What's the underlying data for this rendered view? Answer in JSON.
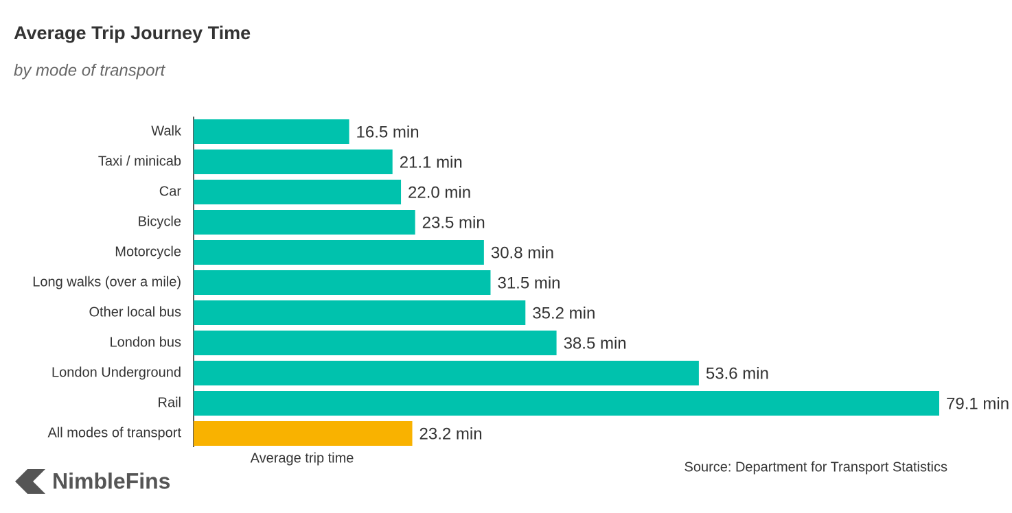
{
  "chart_data": {
    "type": "hbar",
    "title": "Average Trip Journey Time",
    "subtitle": "by mode of transport",
    "categories": [
      "Walk",
      "Taxi / minicab",
      "Car",
      "Bicycle",
      "Motorcycle",
      "Long walks (over a mile)",
      "Other local bus",
      "London bus",
      "London Underground",
      "Rail",
      "All modes of transport"
    ],
    "values": [
      16.5,
      21.1,
      22.0,
      23.5,
      30.8,
      31.5,
      35.2,
      38.5,
      53.6,
      79.1,
      23.2
    ],
    "value_labels": [
      "16.5 min",
      "21.1 min",
      "22.0 min",
      "23.5 min",
      "30.8 min",
      "31.5 min",
      "35.2 min",
      "38.5 min",
      "53.6 min",
      "79.1 min",
      "23.2 min"
    ],
    "colors": [
      "#00c2ad",
      "#00c2ad",
      "#00c2ad",
      "#00c2ad",
      "#00c2ad",
      "#00c2ad",
      "#00c2ad",
      "#00c2ad",
      "#00c2ad",
      "#00c2ad",
      "#f9b200"
    ],
    "xlabel": "Average trip time",
    "source": "Source: Department for Transport Statistics"
  },
  "brand": "NimbleFins"
}
